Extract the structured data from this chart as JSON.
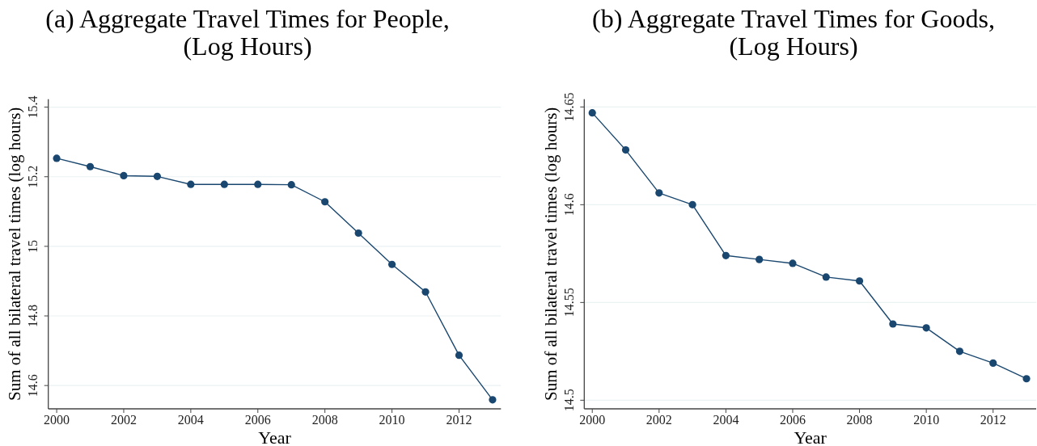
{
  "chart_data": [
    {
      "type": "line",
      "title": "(a) Aggregate Travel Times for People,\n(Log Hours)",
      "xlabel": "Year",
      "ylabel": "Sum of all bilateral travel times (log hours)",
      "x": [
        2000,
        2001,
        2002,
        2003,
        2004,
        2005,
        2006,
        2007,
        2008,
        2009,
        2010,
        2011,
        2012,
        2013
      ],
      "values": [
        15.253,
        15.229,
        15.203,
        15.201,
        15.178,
        15.178,
        15.178,
        15.177,
        15.128,
        15.038,
        14.948,
        14.869,
        14.687,
        14.559
      ],
      "color": "#1a476f",
      "xlim": [
        1999.75,
        2013.25
      ],
      "xticks": [
        2000,
        2002,
        2004,
        2006,
        2008,
        2010,
        2012
      ],
      "ylim": [
        14.533,
        15.423
      ],
      "yticks": [
        14.6,
        14.8,
        15,
        15.2,
        15.4
      ],
      "grid": "y",
      "marker": "circle",
      "line_style": "solid"
    },
    {
      "type": "line",
      "title": "(b) Aggregate Travel Times for Goods,\n(Log Hours)",
      "xlabel": "Year",
      "ylabel": "Sum of all bilateral travel times (log hours)",
      "x": [
        2000,
        2001,
        2002,
        2003,
        2004,
        2005,
        2006,
        2007,
        2008,
        2009,
        2010,
        2011,
        2012,
        2013
      ],
      "values": [
        14.647,
        14.628,
        14.606,
        14.6,
        14.574,
        14.572,
        14.57,
        14.563,
        14.561,
        14.539,
        14.537,
        14.525,
        14.519,
        14.511
      ],
      "color": "#1a476f",
      "xlim": [
        1999.76,
        2013.29
      ],
      "xticks": [
        2000,
        2002,
        2004,
        2006,
        2008,
        2010,
        2012
      ],
      "ylim": [
        14.4956,
        14.654
      ],
      "yticks": [
        14.5,
        14.55,
        14.6,
        14.65
      ],
      "grid": "y",
      "marker": "circle",
      "line_style": "solid"
    }
  ]
}
